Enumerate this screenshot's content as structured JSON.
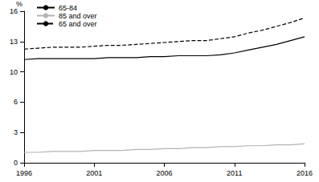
{
  "chart_data": {
    "type": "line",
    "y_label": "%",
    "x": [
      1996,
      1997,
      1998,
      1999,
      2000,
      2001,
      2002,
      2003,
      2004,
      2005,
      2006,
      2007,
      2008,
      2009,
      2010,
      2011,
      2012,
      2013,
      2014,
      2015,
      2016
    ],
    "series": [
      {
        "name": "65-84",
        "color": "#000000",
        "line_style": "solid",
        "values": [
          10.9,
          11.0,
          11.0,
          11.0,
          11.0,
          11.0,
          11.1,
          11.1,
          11.1,
          11.2,
          11.2,
          11.3,
          11.3,
          11.3,
          11.4,
          11.6,
          11.9,
          12.2,
          12.5,
          12.9,
          13.3
        ]
      },
      {
        "name": "85 and over",
        "color": "#b3b3b3",
        "line_style": "solid",
        "values": [
          1.1,
          1.1,
          1.2,
          1.2,
          1.2,
          1.3,
          1.3,
          1.3,
          1.4,
          1.4,
          1.5,
          1.5,
          1.6,
          1.6,
          1.7,
          1.7,
          1.8,
          1.8,
          1.9,
          1.9,
          2.0
        ]
      },
      {
        "name": "65 and over",
        "color": "#000000",
        "line_style": "dashed",
        "values": [
          12.0,
          12.1,
          12.2,
          12.2,
          12.2,
          12.3,
          12.4,
          12.4,
          12.5,
          12.6,
          12.7,
          12.8,
          12.9,
          12.9,
          13.1,
          13.3,
          13.7,
          14.0,
          14.4,
          14.8,
          15.3
        ]
      }
    ],
    "xlim": [
      1996,
      2016
    ],
    "xticks": [
      1996,
      2001,
      2006,
      2011,
      2016
    ],
    "ylim": [
      0,
      16
    ],
    "yticks": [
      0,
      {
        "value": 3.2,
        "label": "3"
      },
      {
        "value": 6.4,
        "label": "6"
      },
      {
        "value": 9.6,
        "label": "10"
      },
      {
        "value": 12.8,
        "label": "13"
      },
      16
    ],
    "grid": false,
    "legend": "top-left"
  }
}
